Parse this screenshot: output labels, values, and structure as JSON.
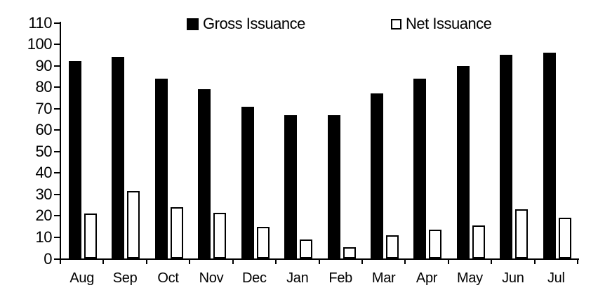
{
  "chart_data": {
    "type": "bar",
    "title": "",
    "categories": [
      "Aug",
      "Sep",
      "Oct",
      "Nov",
      "Dec",
      "Jan",
      "Feb",
      "Mar",
      "Apr",
      "May",
      "Jun",
      "Jul"
    ],
    "series": [
      {
        "name": "Gross Issuance",
        "style": "solid",
        "color": "#000000",
        "values": [
          92,
          94,
          84,
          79,
          71,
          67,
          67,
          77,
          84,
          90,
          95,
          96
        ]
      },
      {
        "name": "Net Issuance",
        "style": "outline",
        "color": "#ffffff",
        "border_color": "#000000",
        "values": [
          21,
          31.5,
          24,
          21.5,
          15,
          9,
          5.5,
          11,
          13.5,
          15.5,
          23,
          19
        ]
      }
    ],
    "xlabel": "",
    "ylabel": "",
    "ylim": [
      0,
      110
    ],
    "ytick_step": 10,
    "ytick_labels": [
      "0",
      "10",
      "20",
      "30",
      "40",
      "50",
      "60",
      "70",
      "80",
      "90",
      "100",
      "110"
    ],
    "grid": false,
    "legend_position": "top"
  },
  "colors": {
    "background": "#ffffff",
    "axis": "#000000",
    "gross_bar": "#000000",
    "net_bar_fill": "#ffffff",
    "net_bar_border": "#000000"
  }
}
